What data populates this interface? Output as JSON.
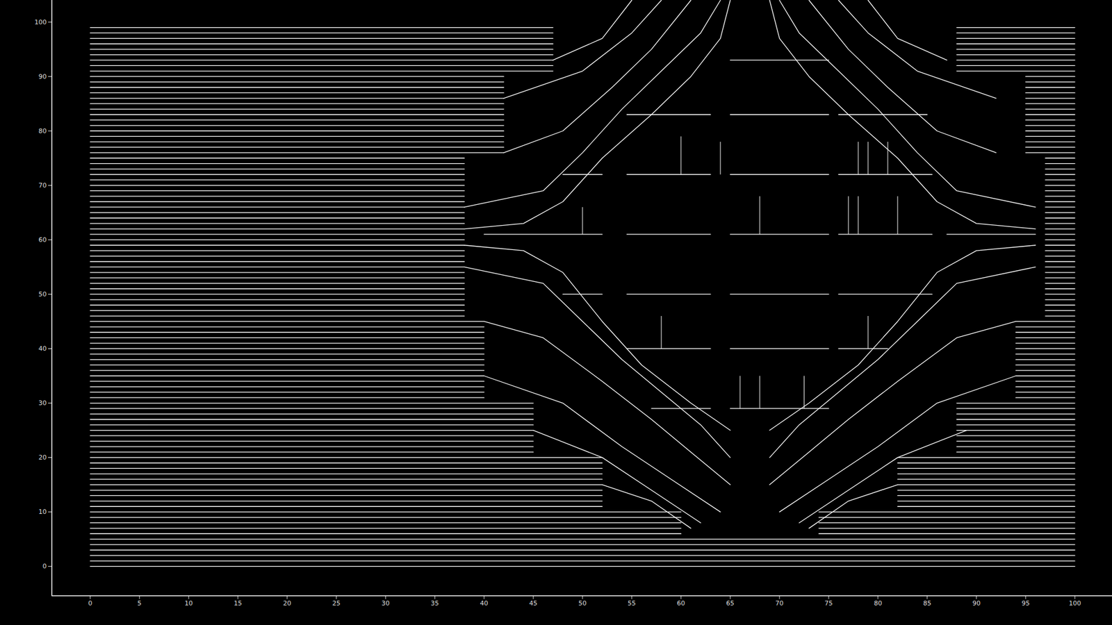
{
  "chart_data": {
    "type": "line",
    "color": "#ffffff",
    "grid": false,
    "xlim": [
      -3.9,
      103.8
    ],
    "ylim": [
      -5.4,
      104
    ],
    "xticks": [
      0,
      5,
      10,
      15,
      20,
      25,
      30,
      35,
      40,
      45,
      50,
      55,
      60,
      65,
      70,
      75,
      80,
      85,
      90,
      95,
      100
    ],
    "yticks": [
      0,
      10,
      20,
      30,
      40,
      50,
      60,
      70,
      80,
      90,
      100
    ],
    "rows": [
      {
        "y": [
          0,
          1,
          2,
          3,
          4,
          5
        ],
        "segments": [
          [
            0,
            100
          ]
        ]
      },
      {
        "y": [
          6,
          7,
          8,
          9,
          10
        ],
        "segments": [
          [
            0,
            60
          ],
          [
            74,
            100
          ]
        ]
      },
      {
        "y": [
          11,
          12,
          13,
          14,
          15,
          16,
          17,
          18,
          19,
          20
        ],
        "segments": [
          [
            0,
            52
          ],
          [
            82,
            100
          ]
        ]
      },
      {
        "y": [
          21,
          22,
          23,
          24,
          25,
          26,
          27,
          28,
          29,
          30
        ],
        "segments": [
          [
            0,
            45
          ],
          [
            88,
            100
          ]
        ]
      },
      {
        "y": [
          31,
          32,
          33,
          34,
          35,
          36,
          37,
          38,
          39,
          40,
          41,
          42,
          43,
          44,
          45
        ],
        "segments": [
          [
            0,
            40
          ],
          [
            94,
            100
          ]
        ]
      },
      {
        "y": [
          46,
          47,
          48,
          49,
          50,
          51,
          52,
          53,
          54,
          55,
          56,
          57,
          58,
          59,
          60,
          61,
          62,
          63,
          64,
          65,
          66,
          67,
          68,
          69,
          70,
          71,
          72,
          73,
          74,
          75
        ],
        "segments": [
          [
            0,
            38
          ],
          [
            97,
            100
          ]
        ]
      },
      {
        "y": [
          76,
          77,
          78,
          79,
          80,
          81,
          82,
          83,
          84,
          85,
          86,
          87,
          88,
          89,
          90
        ],
        "segments": [
          [
            0,
            42
          ],
          [
            95,
            100
          ]
        ]
      },
      {
        "y": [
          91,
          92,
          93,
          94,
          95,
          96,
          97,
          98,
          99
        ],
        "segments": [
          [
            0,
            47
          ],
          [
            88,
            100
          ]
        ]
      }
    ],
    "curves": [
      [
        [
          38,
          59
        ],
        [
          44,
          58
        ],
        [
          48,
          54
        ],
        [
          52,
          45
        ],
        [
          56,
          37
        ],
        [
          61,
          30
        ],
        [
          65,
          25
        ]
      ],
      [
        [
          38,
          55
        ],
        [
          46,
          52
        ],
        [
          50,
          45
        ],
        [
          54,
          38
        ],
        [
          58,
          32
        ],
        [
          62,
          26
        ],
        [
          65,
          20
        ]
      ],
      [
        [
          40,
          45
        ],
        [
          46,
          42
        ],
        [
          52,
          34
        ],
        [
          57,
          27
        ],
        [
          61,
          21
        ],
        [
          65,
          15
        ]
      ],
      [
        [
          40,
          35
        ],
        [
          48,
          30
        ],
        [
          54,
          22
        ],
        [
          59,
          16
        ],
        [
          64,
          10
        ]
      ],
      [
        [
          45,
          25
        ],
        [
          52,
          20
        ],
        [
          57,
          14
        ],
        [
          62,
          8
        ]
      ],
      [
        [
          52,
          15
        ],
        [
          57,
          12
        ],
        [
          61,
          7
        ]
      ],
      [
        [
          96,
          59
        ],
        [
          90,
          58
        ],
        [
          86,
          54
        ],
        [
          82,
          45
        ],
        [
          78,
          37
        ],
        [
          73,
          30
        ],
        [
          69,
          25
        ]
      ],
      [
        [
          96,
          55
        ],
        [
          88,
          52
        ],
        [
          84,
          45
        ],
        [
          80,
          38
        ],
        [
          76,
          32
        ],
        [
          72,
          26
        ],
        [
          69,
          20
        ]
      ],
      [
        [
          94,
          45
        ],
        [
          88,
          42
        ],
        [
          82,
          34
        ],
        [
          77,
          27
        ],
        [
          73,
          21
        ],
        [
          69,
          15
        ]
      ],
      [
        [
          94,
          35
        ],
        [
          86,
          30
        ],
        [
          80,
          22
        ],
        [
          75,
          16
        ],
        [
          70,
          10
        ]
      ],
      [
        [
          89,
          25
        ],
        [
          82,
          20
        ],
        [
          77,
          14
        ],
        [
          72,
          8
        ]
      ],
      [
        [
          82,
          15
        ],
        [
          77,
          12
        ],
        [
          73,
          7
        ]
      ],
      [
        [
          38,
          62
        ],
        [
          44,
          63
        ],
        [
          48,
          67
        ],
        [
          52,
          75
        ],
        [
          57,
          83
        ],
        [
          61,
          90
        ],
        [
          64,
          97
        ],
        [
          65,
          104
        ]
      ],
      [
        [
          38,
          66
        ],
        [
          46,
          69
        ],
        [
          50,
          76
        ],
        [
          54,
          84
        ],
        [
          58,
          91
        ],
        [
          62,
          98
        ],
        [
          64,
          104
        ]
      ],
      [
        [
          42,
          76
        ],
        [
          48,
          80
        ],
        [
          53,
          88
        ],
        [
          57,
          95
        ],
        [
          61,
          104
        ]
      ],
      [
        [
          42,
          86
        ],
        [
          50,
          91
        ],
        [
          55,
          98
        ],
        [
          58,
          104
        ]
      ],
      [
        [
          47,
          93
        ],
        [
          52,
          97
        ],
        [
          55,
          104
        ]
      ],
      [
        [
          96,
          62
        ],
        [
          90,
          63
        ],
        [
          86,
          67
        ],
        [
          82,
          75
        ],
        [
          77,
          83
        ],
        [
          73,
          90
        ],
        [
          70,
          97
        ],
        [
          69,
          104
        ]
      ],
      [
        [
          96,
          66
        ],
        [
          88,
          69
        ],
        [
          84,
          76
        ],
        [
          80,
          84
        ],
        [
          76,
          91
        ],
        [
          72,
          98
        ],
        [
          70,
          104
        ]
      ],
      [
        [
          92,
          76
        ],
        [
          86,
          80
        ],
        [
          81,
          88
        ],
        [
          77,
          95
        ],
        [
          73,
          104
        ]
      ],
      [
        [
          92,
          86
        ],
        [
          84,
          91
        ],
        [
          79,
          98
        ],
        [
          76,
          104
        ]
      ],
      [
        [
          87,
          93
        ],
        [
          82,
          97
        ],
        [
          79,
          104
        ]
      ]
    ],
    "traces": [
      {
        "y": 93,
        "segments": [
          [
            65,
            75
          ]
        ]
      },
      {
        "y": 83,
        "segments": [
          [
            54.5,
            63
          ],
          [
            65,
            75
          ],
          [
            76,
            85
          ]
        ]
      },
      {
        "y": 72,
        "segments": [
          [
            48,
            52
          ],
          [
            54.5,
            63
          ],
          [
            65,
            75
          ],
          [
            76,
            85.5
          ]
        ]
      },
      {
        "y": 61,
        "segments": [
          [
            40,
            52
          ],
          [
            54.5,
            63
          ],
          [
            65,
            75
          ],
          [
            76,
            85.5
          ],
          [
            87,
            96
          ]
        ]
      },
      {
        "y": 50,
        "segments": [
          [
            48,
            52
          ],
          [
            54.5,
            63
          ],
          [
            65,
            75
          ],
          [
            76,
            85.5
          ]
        ]
      },
      {
        "y": 40,
        "segments": [
          [
            54.5,
            63
          ],
          [
            65,
            75
          ],
          [
            76,
            81
          ]
        ]
      },
      {
        "y": 29,
        "segments": [
          [
            57,
            63
          ],
          [
            65,
            75
          ]
        ]
      }
    ],
    "spikes": [
      {
        "x": 60,
        "y0": 72,
        "y1": 79
      },
      {
        "x": 64,
        "y0": 72,
        "y1": 78
      },
      {
        "x": 78,
        "y0": 72,
        "y1": 78
      },
      {
        "x": 79,
        "y0": 72,
        "y1": 78
      },
      {
        "x": 81,
        "y0": 72,
        "y1": 78
      },
      {
        "x": 50,
        "y0": 61,
        "y1": 66
      },
      {
        "x": 68,
        "y0": 61,
        "y1": 68
      },
      {
        "x": 77,
        "y0": 61,
        "y1": 68
      },
      {
        "x": 78,
        "y0": 61,
        "y1": 68
      },
      {
        "x": 82,
        "y0": 61,
        "y1": 68
      },
      {
        "x": 58,
        "y0": 40,
        "y1": 46
      },
      {
        "x": 79,
        "y0": 40,
        "y1": 46
      },
      {
        "x": 66,
        "y0": 29,
        "y1": 35
      },
      {
        "x": 68,
        "y0": 29,
        "y1": 35
      },
      {
        "x": 72.5,
        "y0": 29,
        "y1": 35
      }
    ]
  }
}
